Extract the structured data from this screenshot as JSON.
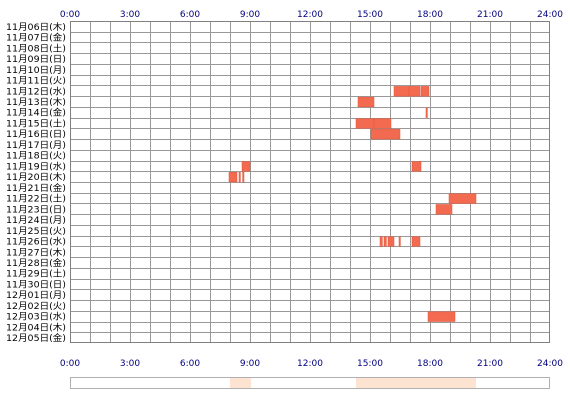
{
  "chart_data": {
    "type": "heatmap",
    "title": "",
    "xlabel": "",
    "ylabel": "",
    "x_range_hours": [
      0,
      24
    ],
    "x_ticks": [
      "0:00",
      "3:00",
      "6:00",
      "9:00",
      "12:00",
      "15:00",
      "18:00",
      "21:00",
      "24:00"
    ],
    "days": [
      "11月06日(木)",
      "11月07日(金)",
      "11月08日(土)",
      "11月09日(日)",
      "11月10日(月)",
      "11月11日(火)",
      "11月12日(水)",
      "11月13日(木)",
      "11月14日(金)",
      "11月15日(土)",
      "11月16日(日)",
      "11月17日(月)",
      "11月18日(火)",
      "11月19日(水)",
      "11月20日(木)",
      "11月21日(金)",
      "11月22日(土)",
      "11月23日(日)",
      "11月24日(月)",
      "11月25日(火)",
      "11月26日(水)",
      "11月27日(木)",
      "11月28日(金)",
      "11月29日(土)",
      "11月30日(日)",
      "12月01日(月)",
      "12月02日(火)",
      "12月03日(水)",
      "12月04日(木)",
      "12月05日(金)"
    ],
    "activity": [
      {
        "day": "11月12日(水)",
        "start": 16.2,
        "end": 16.95
      },
      {
        "day": "11月12日(水)",
        "start": 16.95,
        "end": 17.5
      },
      {
        "day": "11月12日(水)",
        "start": 17.55,
        "end": 17.95
      },
      {
        "day": "11月13日(木)",
        "start": 14.4,
        "end": 15.2
      },
      {
        "day": "11月14日(金)",
        "start": 17.8,
        "end": 17.87
      },
      {
        "day": "11月15日(土)",
        "start": 14.3,
        "end": 15.2
      },
      {
        "day": "11月15日(土)",
        "start": 15.2,
        "end": 16.05
      },
      {
        "day": "11月16日(日)",
        "start": 15.05,
        "end": 16.5
      },
      {
        "day": "11月19日(水)",
        "start": 8.6,
        "end": 9.0
      },
      {
        "day": "11月19日(水)",
        "start": 17.1,
        "end": 17.55
      },
      {
        "day": "11月20日(木)",
        "start": 7.95,
        "end": 8.35
      },
      {
        "day": "11月20日(木)",
        "start": 8.45,
        "end": 8.52
      },
      {
        "day": "11月20日(木)",
        "start": 8.63,
        "end": 8.7
      },
      {
        "day": "11月22日(土)",
        "start": 18.95,
        "end": 20.3
      },
      {
        "day": "11月23日(日)",
        "start": 18.3,
        "end": 19.1
      },
      {
        "day": "11月26日(水)",
        "start": 15.5,
        "end": 15.62
      },
      {
        "day": "11月26日(水)",
        "start": 15.7,
        "end": 15.82
      },
      {
        "day": "11月26日(水)",
        "start": 15.9,
        "end": 16.2
      },
      {
        "day": "11月26日(水)",
        "start": 16.45,
        "end": 16.52
      },
      {
        "day": "11月26日(水)",
        "start": 17.1,
        "end": 17.5
      },
      {
        "day": "12月03日(水)",
        "start": 17.9,
        "end": 19.25
      }
    ],
    "summary_bands": [
      {
        "start": 8.0,
        "end": 9.05
      },
      {
        "start": 14.3,
        "end": 20.3
      }
    ],
    "colors": {
      "activity": "#f26a4f",
      "activity_edge": "#e0563d",
      "grid": "#999999",
      "frame": "#808080",
      "summary_band": "#fde3d2",
      "summary_frame": "#b0b0b0",
      "tick_text": "#000080",
      "day_text": "#000000"
    }
  }
}
